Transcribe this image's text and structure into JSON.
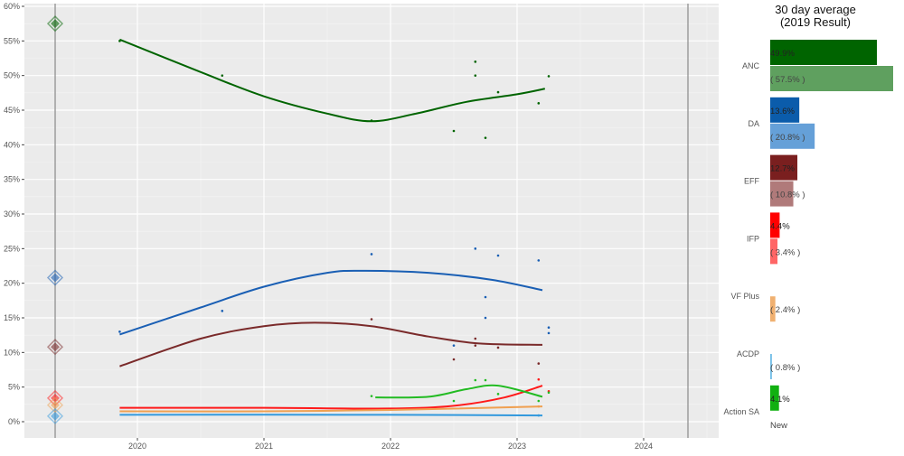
{
  "chart_data": [
    {
      "type": "line+scatter",
      "ylim": [
        0,
        60
      ],
      "xlim": [
        2019.1,
        2024.6
      ],
      "yticks": [
        "0%",
        "5%",
        "10%",
        "15%",
        "20%",
        "25%",
        "30%",
        "35%",
        "40%",
        "45%",
        "50%",
        "55%",
        "60%"
      ],
      "xticks": [
        "2020",
        "2021",
        "2022",
        "2023",
        "2024"
      ],
      "vlines": [
        2019.35,
        2024.35
      ],
      "grid": true,
      "series": [
        {
          "party": "ANC",
          "color": "#006400",
          "result_2019": 57.5,
          "trend": [
            [
              2019.86,
              55.2
            ],
            [
              2020.5,
              50.5
            ],
            [
              2021,
              47
            ],
            [
              2021.5,
              44.5
            ],
            [
              2021.85,
              43.4
            ],
            [
              2022.2,
              44.5
            ],
            [
              2022.6,
              46.2
            ],
            [
              2023,
              47.3
            ],
            [
              2023.22,
              48.1
            ]
          ],
          "polls": [
            [
              2019.86,
              55
            ],
            [
              2020.67,
              50
            ],
            [
              2021.85,
              43.5
            ],
            [
              2022.5,
              42
            ],
            [
              2022.67,
              52
            ],
            [
              2022.67,
              50
            ],
            [
              2022.75,
              41
            ],
            [
              2022.85,
              47.6
            ],
            [
              2023.17,
              46
            ],
            [
              2023.25,
              49.9
            ]
          ]
        },
        {
          "party": "DA",
          "color": "#1a5fb4",
          "result_2019": 20.8,
          "trend": [
            [
              2019.86,
              12.6
            ],
            [
              2020.5,
              16.5
            ],
            [
              2021,
              19.5
            ],
            [
              2021.5,
              21.5
            ],
            [
              2021.8,
              21.8
            ],
            [
              2022.3,
              21.5
            ],
            [
              2022.8,
              20.5
            ],
            [
              2023.2,
              19
            ]
          ],
          "polls": [
            [
              2019.86,
              13
            ],
            [
              2020.67,
              16
            ],
            [
              2021.85,
              24.2
            ],
            [
              2022.67,
              25
            ],
            [
              2022.85,
              24
            ],
            [
              2023.17,
              23.3
            ],
            [
              2022.75,
              18
            ],
            [
              2022.75,
              15
            ],
            [
              2022.5,
              11
            ],
            [
              2023.25,
              12.8
            ],
            [
              2023.25,
              13.6
            ]
          ]
        },
        {
          "party": "EFF",
          "color": "#7a2a2a",
          "result_2019": 10.8,
          "trend": [
            [
              2019.86,
              8
            ],
            [
              2020.5,
              12
            ],
            [
              2021,
              13.8
            ],
            [
              2021.4,
              14.3
            ],
            [
              2021.85,
              13.8
            ],
            [
              2022.3,
              12.3
            ],
            [
              2022.7,
              11.3
            ],
            [
              2023.2,
              11.1
            ]
          ],
          "polls": [
            [
              2021.85,
              14.8
            ],
            [
              2022.67,
              12
            ],
            [
              2022.67,
              11
            ],
            [
              2022.85,
              10.7
            ],
            [
              2022.5,
              9
            ],
            [
              2023.17,
              8.4
            ]
          ]
        },
        {
          "party": "IFP",
          "color": "#ff1a1a",
          "result_2019": 3.4,
          "trend": [
            [
              2019.86,
              2.0
            ],
            [
              2021,
              2.0
            ],
            [
              2022,
              1.9
            ],
            [
              2022.5,
              2.3
            ],
            [
              2022.9,
              3.5
            ],
            [
              2023.2,
              5.2
            ]
          ],
          "polls": [
            [
              2023.17,
              6.1
            ],
            [
              2023.25,
              4.4
            ]
          ]
        },
        {
          "party": "VF Plus",
          "color": "#f0a050",
          "result_2019": 2.4,
          "trend": [
            [
              2019.86,
              1.5
            ],
            [
              2021,
              1.5
            ],
            [
              2022,
              1.7
            ],
            [
              2023.2,
              2.2
            ]
          ],
          "polls": [
            [
              2023.17,
              2.2
            ]
          ]
        },
        {
          "party": "ACDP",
          "color": "#3399dd",
          "result_2019": 0.8,
          "trend": [
            [
              2019.86,
              1.0
            ],
            [
              2022,
              1.0
            ],
            [
              2023.2,
              0.9
            ]
          ],
          "polls": [
            [
              2023.17,
              0.9
            ]
          ]
        },
        {
          "party": "Action SA",
          "color": "#22bb22",
          "trend": [
            [
              2021.88,
              3.5
            ],
            [
              2022.3,
              3.6
            ],
            [
              2022.6,
              4.7
            ],
            [
              2022.85,
              5.2
            ],
            [
              2023.2,
              3.6
            ]
          ],
          "polls": [
            [
              2021.85,
              3.7
            ],
            [
              2022.5,
              3
            ],
            [
              2022.67,
              6
            ],
            [
              2022.75,
              6
            ],
            [
              2022.85,
              4
            ],
            [
              2023.17,
              3
            ],
            [
              2023.25,
              4.2
            ]
          ]
        }
      ]
    },
    {
      "type": "bar",
      "title_line1": "30 day average",
      "title_line2": "(2019 Result)",
      "categories": [
        "ANC",
        "DA",
        "EFF",
        "IFP",
        "VF Plus",
        "ACDP",
        "Action SA"
      ],
      "bars": [
        {
          "party": "ANC",
          "avg": 49.9,
          "avg_label": "49.9%",
          "result": 57.5,
          "result_label": "( 57.5% )",
          "color": "#006400",
          "light": "#5fa05f"
        },
        {
          "party": "DA",
          "avg": 13.6,
          "avg_label": "13.6%",
          "result": 20.8,
          "result_label": "( 20.8% )",
          "color": "#0b5cab",
          "light": "#65a0d8"
        },
        {
          "party": "EFF",
          "avg": 12.7,
          "avg_label": "12.7%",
          "result": 10.8,
          "result_label": "( 10.8% )",
          "color": "#7a1f1f",
          "light": "#b07a7a"
        },
        {
          "party": "IFP",
          "avg": 4.4,
          "avg_label": "4.4%",
          "result": 3.4,
          "result_label": "( 3.4% )",
          "color": "#ff0000",
          "light": "#ff6666"
        },
        {
          "party": "VF Plus",
          "avg": null,
          "avg_label": "",
          "result": 2.4,
          "result_label": "( 2.4% )",
          "color": "#f0a050",
          "light": "#f0b070"
        },
        {
          "party": "ACDP",
          "avg": null,
          "avg_label": "",
          "result": 0.8,
          "result_label": "( 0.8% )",
          "color": "#3399dd",
          "light": "#77c0e8"
        },
        {
          "party": "Action SA",
          "avg": 4.1,
          "avg_label": "4.1%",
          "result": null,
          "result_label": "New",
          "color": "#11b011",
          "light": "#11b011"
        }
      ]
    }
  ]
}
